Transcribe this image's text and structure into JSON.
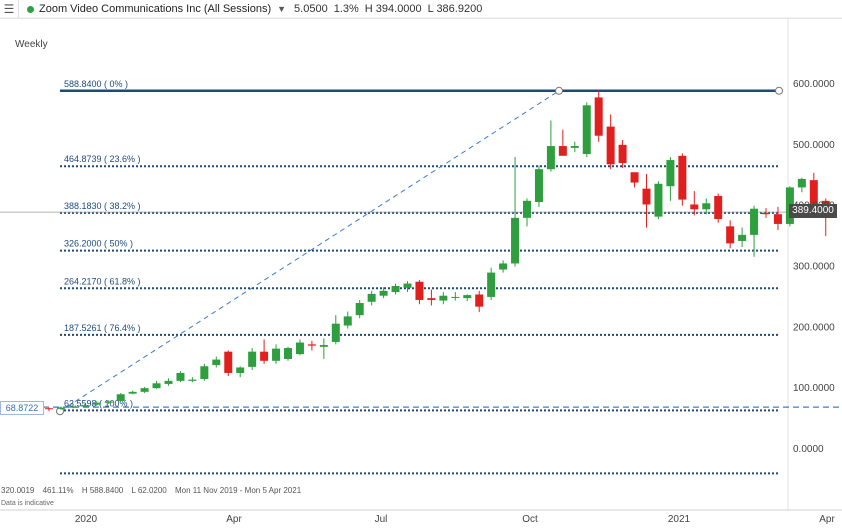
{
  "header": {
    "instrument": "Zoom Video Communications Inc (All Sessions)",
    "change": "5.0500",
    "change_pct": "1.3%",
    "high": "H 394.0000",
    "low": "L 386.9200"
  },
  "timeframe": "Weekly",
  "current_price_label": "389.4000",
  "left_price_label": "68.8722",
  "footer": {
    "ratio": "320.0019",
    "pct": "461.11%",
    "high": "H 588.8400",
    "low": "L 62.0200",
    "range": "Mon 11 Nov 2019 - Mon 5 Apr 2021",
    "disclaimer": "Data is indicative"
  },
  "colors": {
    "up": "#2e9e3e",
    "down": "#e0201f",
    "fib_line": "#1e4a7a",
    "trend_line": "#3d7cc9",
    "label": "#1e4a7a"
  },
  "chart_data": {
    "type": "candlestick",
    "frequency": "Weekly",
    "y_range": [
      -50,
      620
    ],
    "y_ticks": [
      {
        "value": 0,
        "label": "0.0000"
      },
      {
        "value": 100,
        "label": "100.0000"
      },
      {
        "value": 200,
        "label": "200.0000"
      },
      {
        "value": 300,
        "label": "300.0000"
      },
      {
        "value": 400,
        "label": "400.0000"
      },
      {
        "value": 500,
        "label": "500.0000"
      },
      {
        "value": 600,
        "label": "600.0000"
      }
    ],
    "x_ticks": [
      "2020",
      "Apr",
      "Jul",
      "Oct",
      "2021",
      "Apr"
    ],
    "fib_levels": [
      {
        "price": 588.84,
        "label": "588.8400 ( 0% )",
        "solid": true
      },
      {
        "price": 464.8739,
        "label": "464.8739 ( 23.6% )"
      },
      {
        "price": 388.183,
        "label": "388.1830 ( 38.2% )"
      },
      {
        "price": 326.2,
        "label": "326.2000 ( 50% )"
      },
      {
        "price": 264.217,
        "label": "264.2170 ( 61.8% )"
      },
      {
        "price": 187.5261,
        "label": "187.5261 ( 76.4% )"
      },
      {
        "price": 63.5598,
        "label": "63.5598 ( 100% )"
      },
      {
        "price": -40,
        "label": ""
      }
    ],
    "trend": {
      "from": 62.02,
      "to": 588.84
    },
    "current_price": 389.4,
    "left_reference_price": 68.8722,
    "candles": [
      {
        "o": 67,
        "h": 68,
        "l": 62,
        "c": 66
      },
      {
        "o": 66,
        "h": 70,
        "l": 64,
        "c": 68
      },
      {
        "o": 68,
        "h": 73,
        "l": 67,
        "c": 70
      },
      {
        "o": 70,
        "h": 74,
        "l": 68,
        "c": 72
      },
      {
        "o": 73,
        "h": 79,
        "l": 71,
        "c": 76
      },
      {
        "o": 76,
        "h": 80,
        "l": 74,
        "c": 78
      },
      {
        "o": 79,
        "h": 92,
        "l": 78,
        "c": 90
      },
      {
        "o": 91,
        "h": 96,
        "l": 90,
        "c": 94
      },
      {
        "o": 94,
        "h": 102,
        "l": 92,
        "c": 100
      },
      {
        "o": 100,
        "h": 112,
        "l": 99,
        "c": 108
      },
      {
        "o": 107,
        "h": 116,
        "l": 104,
        "c": 112
      },
      {
        "o": 112,
        "h": 128,
        "l": 110,
        "c": 125
      },
      {
        "o": 112,
        "h": 118,
        "l": 110,
        "c": 114
      },
      {
        "o": 115,
        "h": 140,
        "l": 112,
        "c": 136
      },
      {
        "o": 138,
        "h": 152,
        "l": 134,
        "c": 147
      },
      {
        "o": 160,
        "h": 162,
        "l": 120,
        "c": 125
      },
      {
        "o": 125,
        "h": 136,
        "l": 118,
        "c": 134
      },
      {
        "o": 135,
        "h": 166,
        "l": 130,
        "c": 160
      },
      {
        "o": 160,
        "h": 180,
        "l": 140,
        "c": 145
      },
      {
        "o": 145,
        "h": 172,
        "l": 140,
        "c": 165
      },
      {
        "o": 148,
        "h": 168,
        "l": 145,
        "c": 166
      },
      {
        "o": 156,
        "h": 180,
        "l": 154,
        "c": 175
      },
      {
        "o": 172,
        "h": 178,
        "l": 162,
        "c": 170
      },
      {
        "o": 168,
        "h": 182,
        "l": 148,
        "c": 171
      },
      {
        "o": 176,
        "h": 220,
        "l": 172,
        "c": 206
      },
      {
        "o": 203,
        "h": 226,
        "l": 198,
        "c": 218
      },
      {
        "o": 220,
        "h": 245,
        "l": 215,
        "c": 240
      },
      {
        "o": 242,
        "h": 260,
        "l": 236,
        "c": 255
      },
      {
        "o": 252,
        "h": 266,
        "l": 248,
        "c": 260
      },
      {
        "o": 258,
        "h": 272,
        "l": 254,
        "c": 268
      },
      {
        "o": 265,
        "h": 276,
        "l": 258,
        "c": 272
      },
      {
        "o": 275,
        "h": 278,
        "l": 238,
        "c": 245
      },
      {
        "o": 248,
        "h": 262,
        "l": 236,
        "c": 245
      },
      {
        "o": 244,
        "h": 258,
        "l": 238,
        "c": 252
      },
      {
        "o": 250,
        "h": 258,
        "l": 244,
        "c": 250
      },
      {
        "o": 248,
        "h": 254,
        "l": 243,
        "c": 253
      },
      {
        "o": 254,
        "h": 260,
        "l": 225,
        "c": 234
      },
      {
        "o": 250,
        "h": 298,
        "l": 245,
        "c": 290
      },
      {
        "o": 295,
        "h": 310,
        "l": 290,
        "c": 305
      },
      {
        "o": 305,
        "h": 480,
        "l": 300,
        "c": 380
      },
      {
        "o": 380,
        "h": 412,
        "l": 366,
        "c": 408
      },
      {
        "o": 406,
        "h": 466,
        "l": 398,
        "c": 460
      },
      {
        "o": 460,
        "h": 540,
        "l": 456,
        "c": 498
      },
      {
        "o": 498,
        "h": 525,
        "l": 484,
        "c": 482
      },
      {
        "o": 495,
        "h": 505,
        "l": 488,
        "c": 498
      },
      {
        "o": 485,
        "h": 570,
        "l": 480,
        "c": 565
      },
      {
        "o": 578,
        "h": 588.84,
        "l": 505,
        "c": 515
      },
      {
        "o": 530,
        "h": 550,
        "l": 460,
        "c": 468
      },
      {
        "o": 500,
        "h": 508,
        "l": 462,
        "c": 470
      },
      {
        "o": 455,
        "h": 452,
        "l": 430,
        "c": 438
      },
      {
        "o": 428,
        "h": 452,
        "l": 364,
        "c": 402
      },
      {
        "o": 382,
        "h": 440,
        "l": 378,
        "c": 436
      },
      {
        "o": 432,
        "h": 480,
        "l": 408,
        "c": 475
      },
      {
        "o": 482,
        "h": 486,
        "l": 400,
        "c": 410
      },
      {
        "o": 402,
        "h": 424,
        "l": 384,
        "c": 394
      },
      {
        "o": 394,
        "h": 412,
        "l": 386,
        "c": 404
      },
      {
        "o": 416,
        "h": 420,
        "l": 372,
        "c": 378
      },
      {
        "o": 366,
        "h": 376,
        "l": 330,
        "c": 338
      },
      {
        "o": 342,
        "h": 364,
        "l": 332,
        "c": 352
      },
      {
        "o": 352,
        "h": 400,
        "l": 316,
        "c": 395
      },
      {
        "o": 388,
        "h": 396,
        "l": 380,
        "c": 386
      },
      {
        "o": 386,
        "h": 398,
        "l": 360,
        "c": 370
      },
      {
        "o": 370,
        "h": 432,
        "l": 366,
        "c": 430
      },
      {
        "o": 430,
        "h": 446,
        "l": 422,
        "c": 444
      },
      {
        "o": 442,
        "h": 454,
        "l": 400,
        "c": 400
      },
      {
        "o": 408,
        "h": 412,
        "l": 350,
        "c": 384
      }
    ]
  }
}
